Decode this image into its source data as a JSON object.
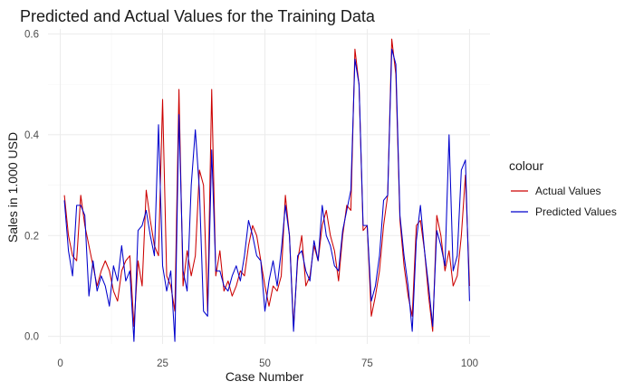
{
  "chart_data": {
    "type": "line",
    "title": "Predicted and Actual Values for the Training Data",
    "xlabel": "Case Number",
    "ylabel": "Sales in 1.000 USD",
    "xlim": [
      -3,
      105
    ],
    "ylim": [
      -0.015,
      0.61
    ],
    "xticks": [
      0,
      25,
      50,
      75,
      100
    ],
    "yticks": [
      0.0,
      0.2,
      0.4,
      0.6
    ],
    "xtick_labels": [
      "0",
      "25",
      "50",
      "75",
      "100"
    ],
    "ytick_labels": [
      "0.0",
      "0.2",
      "0.4",
      "0.6"
    ],
    "grid": true,
    "legend": {
      "title": "colour",
      "position": "right"
    },
    "series": [
      {
        "name": "Actual Values",
        "color": "#cc0000",
        "x": [
          1,
          2,
          3,
          4,
          5,
          6,
          7,
          8,
          9,
          10,
          11,
          12,
          13,
          14,
          15,
          16,
          17,
          18,
          19,
          20,
          21,
          22,
          23,
          24,
          25,
          26,
          27,
          28,
          29,
          30,
          31,
          32,
          33,
          34,
          35,
          36,
          37,
          38,
          39,
          40,
          41,
          42,
          43,
          44,
          45,
          46,
          47,
          48,
          49,
          50,
          51,
          52,
          53,
          54,
          55,
          56,
          57,
          58,
          59,
          60,
          61,
          62,
          63,
          64,
          65,
          66,
          67,
          68,
          69,
          70,
          71,
          72,
          73,
          74,
          75,
          76,
          77,
          78,
          79,
          80,
          81,
          82,
          83,
          84,
          85,
          86,
          87,
          88,
          89,
          90,
          91,
          92,
          93,
          94,
          95,
          96,
          97,
          98,
          99,
          100
        ],
        "values": [
          0.28,
          0.2,
          0.16,
          0.15,
          0.28,
          0.22,
          0.18,
          0.14,
          0.1,
          0.13,
          0.15,
          0.13,
          0.09,
          0.07,
          0.13,
          0.15,
          0.16,
          0.02,
          0.15,
          0.1,
          0.29,
          0.23,
          0.18,
          0.16,
          0.47,
          0.12,
          0.1,
          0.05,
          0.49,
          0.1,
          0.17,
          0.12,
          0.16,
          0.33,
          0.3,
          0.05,
          0.49,
          0.12,
          0.17,
          0.09,
          0.11,
          0.08,
          0.1,
          0.13,
          0.12,
          0.18,
          0.22,
          0.2,
          0.15,
          0.1,
          0.06,
          0.1,
          0.09,
          0.12,
          0.28,
          0.2,
          0.02,
          0.15,
          0.2,
          0.1,
          0.12,
          0.18,
          0.15,
          0.22,
          0.25,
          0.2,
          0.17,
          0.11,
          0.2,
          0.26,
          0.25,
          0.57,
          0.5,
          0.21,
          0.22,
          0.04,
          0.08,
          0.13,
          0.22,
          0.28,
          0.59,
          0.52,
          0.23,
          0.14,
          0.08,
          0.04,
          0.22,
          0.23,
          0.17,
          0.08,
          0.01,
          0.24,
          0.2,
          0.13,
          0.17,
          0.1,
          0.12,
          0.2,
          0.32,
          0.1
        ]
      },
      {
        "name": "Predicted Values",
        "color": "#0000cc",
        "x": [
          1,
          2,
          3,
          4,
          5,
          6,
          7,
          8,
          9,
          10,
          11,
          12,
          13,
          14,
          15,
          16,
          17,
          18,
          19,
          20,
          21,
          22,
          23,
          24,
          25,
          26,
          27,
          28,
          29,
          30,
          31,
          32,
          33,
          34,
          35,
          36,
          37,
          38,
          39,
          40,
          41,
          42,
          43,
          44,
          45,
          46,
          47,
          48,
          49,
          50,
          51,
          52,
          53,
          54,
          55,
          56,
          57,
          58,
          59,
          60,
          61,
          62,
          63,
          64,
          65,
          66,
          67,
          68,
          69,
          70,
          71,
          72,
          73,
          74,
          75,
          76,
          77,
          78,
          79,
          80,
          81,
          82,
          83,
          84,
          85,
          86,
          87,
          88,
          89,
          90,
          91,
          92,
          93,
          94,
          95,
          96,
          97,
          98,
          99,
          100
        ],
        "values": [
          0.27,
          0.17,
          0.12,
          0.26,
          0.26,
          0.24,
          0.08,
          0.15,
          0.09,
          0.12,
          0.1,
          0.06,
          0.14,
          0.11,
          0.18,
          0.11,
          0.13,
          -0.01,
          0.21,
          0.22,
          0.25,
          0.2,
          0.16,
          0.42,
          0.14,
          0.09,
          0.13,
          -0.01,
          0.44,
          0.13,
          0.09,
          0.3,
          0.41,
          0.29,
          0.05,
          0.04,
          0.37,
          0.13,
          0.13,
          0.1,
          0.09,
          0.12,
          0.14,
          0.11,
          0.16,
          0.23,
          0.2,
          0.16,
          0.15,
          0.05,
          0.11,
          0.15,
          0.1,
          0.17,
          0.26,
          0.2,
          0.01,
          0.16,
          0.17,
          0.13,
          0.11,
          0.19,
          0.15,
          0.26,
          0.2,
          0.18,
          0.14,
          0.13,
          0.21,
          0.25,
          0.29,
          0.55,
          0.5,
          0.22,
          0.22,
          0.07,
          0.1,
          0.16,
          0.27,
          0.28,
          0.57,
          0.54,
          0.24,
          0.16,
          0.1,
          0.01,
          0.19,
          0.26,
          0.17,
          0.1,
          0.02,
          0.21,
          0.18,
          0.14,
          0.4,
          0.13,
          0.16,
          0.33,
          0.35,
          0.07
        ]
      }
    ]
  }
}
